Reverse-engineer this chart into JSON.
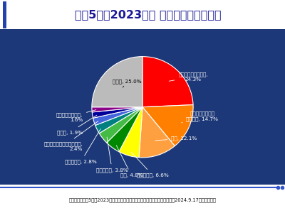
{
  "title": "令和5年（2023年） 主な死因の構成割合",
  "source": "（出典：「令和5年（2023年）人口動態統計（確定数）の概況」厚生労働省　2024.9.17　より作図）",
  "values": [
    24.3,
    14.7,
    12.1,
    6.6,
    4.8,
    3.8,
    2.8,
    2.4,
    1.9,
    1.6,
    25.0
  ],
  "colors": [
    "#FF0000",
    "#FF7F00",
    "#FFA040",
    "#FFFF00",
    "#008800",
    "#44BB44",
    "#008080",
    "#4466DD",
    "#000099",
    "#880088",
    "#BBBBBB"
  ],
  "bg_color": "#1c3878",
  "title_bg": "#ffffff",
  "title_color": "#1a1a99",
  "source_color": "#222222",
  "startangle": 90,
  "label_texts": [
    "悪性新生物〈腫瘍〉,\n24.3%",
    "心疾患（高血圧性\nを除く）, 14.7%",
    "老衰, 12.1%",
    "脳血管疾患, 6.6%",
    "肺炎, 4.8%",
    "誤嚥性肺炎, 3.8%",
    "不慮の事故, 2.8%",
    "新型コロナウイルス感染症,\n2.4%",
    "腎不全, 1.9%",
    "アルツハイマー病,\n1.6%",
    "その他, 25.0%"
  ]
}
